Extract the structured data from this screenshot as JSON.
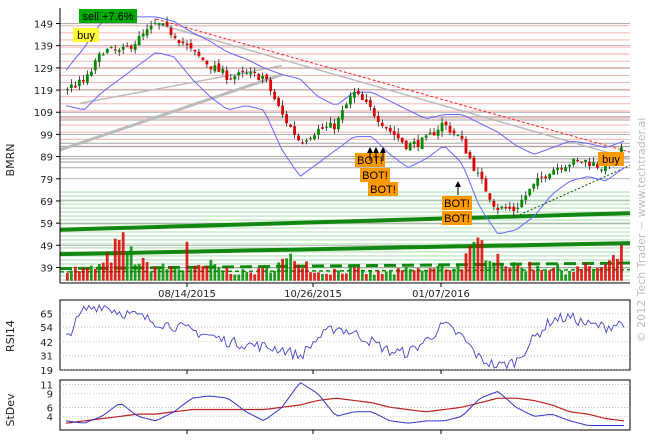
{
  "chart_data": [
    {
      "type": "candlestick",
      "panel": "price",
      "ylabel": "BMRN",
      "y_ticks": [
        39,
        49,
        59,
        69,
        79,
        89,
        99,
        109,
        119,
        129,
        139,
        149
      ],
      "ylim": [
        32,
        156
      ],
      "x_ticks": [
        "08/14/2015",
        "10/26/2015",
        "01/07/2016"
      ],
      "series": [
        {
          "name": "close",
          "values": [
            120,
            123,
            137,
            136,
            142,
            149,
            144,
            136,
            130,
            125,
            126,
            125,
            108,
            96,
            101,
            103,
            118,
            110,
            101,
            94,
            96,
            104,
            97,
            80,
            66,
            65,
            75,
            83,
            86,
            87,
            84,
            92
          ]
        },
        {
          "name": "upper_band",
          "values": [
            128,
            138,
            150,
            152,
            152,
            152,
            150,
            145,
            141,
            136,
            133,
            129,
            126,
            124,
            116,
            112,
            118,
            118,
            114,
            110,
            106,
            108,
            108,
            104,
            100,
            94,
            90,
            93,
            96,
            95,
            93,
            96
          ]
        },
        {
          "name": "lower_band",
          "values": [
            112,
            110,
            118,
            124,
            130,
            136,
            134,
            124,
            116,
            110,
            112,
            110,
            92,
            80,
            86,
            92,
            98,
            98,
            90,
            84,
            88,
            94,
            86,
            66,
            54,
            56,
            62,
            72,
            78,
            80,
            78,
            84
          ]
        },
        {
          "name": "volume",
          "values": [
            5,
            4,
            6,
            15,
            7,
            5,
            5,
            4,
            6,
            4,
            3,
            4,
            7,
            9,
            3,
            4,
            4,
            3,
            3,
            4,
            4,
            5,
            6,
            14,
            10,
            5,
            6,
            5,
            4,
            5,
            5,
            10
          ]
        }
      ],
      "annotations": [
        {
          "label": "sell +7.6%",
          "color": "#00aa00"
        },
        {
          "label": "buy",
          "color": "#ffff33"
        },
        {
          "label": "buy",
          "color": "#ff9900"
        },
        {
          "label": "BOT!",
          "color": "#ff9900"
        },
        {
          "label": "BOT!",
          "color": "#ff9900"
        },
        {
          "label": "BOT!",
          "color": "#ff9900"
        },
        {
          "label": "BOT!",
          "color": "#ff9900"
        },
        {
          "label": "BOT!",
          "color": "#ff9900"
        }
      ],
      "colors": {
        "up": "#008800",
        "down": "#dd0000",
        "bands": "#6666ff",
        "resistance": "#ee6666",
        "support": "#22aa22",
        "wick": "#000000"
      }
    },
    {
      "type": "line",
      "panel": "rsi",
      "ylabel": "RSI14",
      "y_ticks": [
        19,
        31,
        42,
        54,
        65
      ],
      "ylim": [
        19,
        76
      ],
      "series": [
        {
          "name": "RSI14",
          "values": [
            45,
            68,
            72,
            66,
            63,
            58,
            55,
            51,
            47,
            42,
            40,
            38,
            36,
            30,
            45,
            54,
            49,
            42,
            34,
            33,
            43,
            56,
            46,
            28,
            22,
            26,
            45,
            60,
            62,
            56,
            54,
            58
          ]
        }
      ],
      "colors": {
        "line": "#4444cc"
      }
    },
    {
      "type": "line",
      "panel": "stdev",
      "ylabel": "StDev",
      "y_ticks": [
        4,
        6,
        9,
        11
      ],
      "ylim": [
        1,
        12
      ],
      "series": [
        {
          "name": "StDev",
          "values": [
            3,
            2.5,
            4,
            7,
            4,
            3,
            5,
            8,
            8.5,
            8,
            5,
            3,
            6,
            11.5,
            9,
            4,
            5,
            5,
            3,
            2.5,
            3,
            3,
            4,
            8,
            9.5,
            6,
            4,
            4.5,
            3,
            2,
            2,
            2
          ]
        },
        {
          "name": "StDev average",
          "values": [
            2.5,
            3,
            3.5,
            4,
            4.5,
            4.5,
            5,
            5.5,
            5.5,
            5.5,
            5.5,
            5.5,
            6,
            6.5,
            7.5,
            8,
            7.5,
            7,
            6,
            5.5,
            5,
            5.5,
            6,
            7,
            8,
            8,
            7.5,
            6.5,
            5,
            4.5,
            3.5,
            3
          ]
        }
      ],
      "colors": {
        "primary": "#3333cc",
        "secondary": "#bb2222"
      }
    }
  ],
  "watermark": "© 2012 Tech Trader ~ www.techtrader.ai"
}
